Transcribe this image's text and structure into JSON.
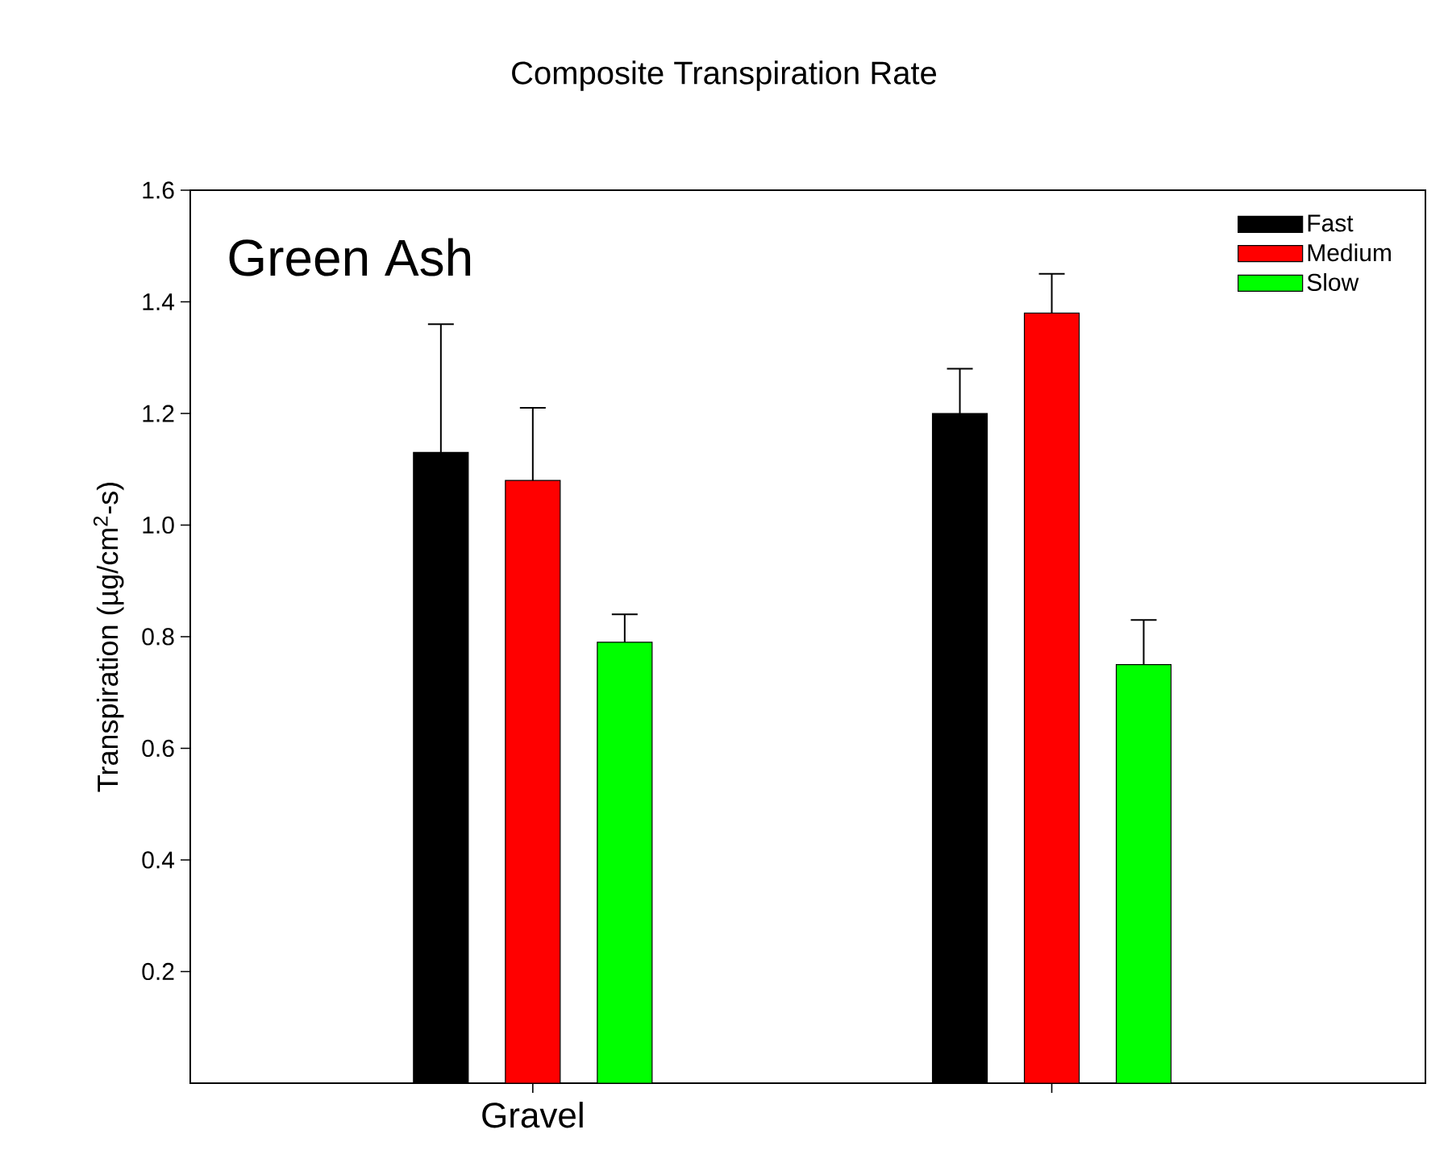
{
  "chart_data": {
    "type": "bar",
    "title": "Composite Transpiration Rate",
    "ylabel": "Transpiration (µg/cm$^{2}$-s)",
    "annotations": [
      "Green Ash"
    ],
    "categories": [
      "Gravel",
      null
    ],
    "series": [
      {
        "name": "Fast",
        "color": "#000000",
        "values": [
          1.13,
          1.2
        ],
        "errors": [
          0.23,
          0.08
        ]
      },
      {
        "name": "Medium",
        "color": "#ff0000",
        "values": [
          1.08,
          1.38
        ],
        "errors": [
          0.13,
          0.07
        ]
      },
      {
        "name": "Slow",
        "color": "#00ff00",
        "values": [
          0.79,
          0.75
        ],
        "errors": [
          0.05,
          0.08
        ]
      }
    ],
    "ylim": [
      0,
      1.6
    ],
    "yticks": [
      0.2,
      0.4,
      0.6,
      0.8,
      {
        "value": 1,
        "label": "1.0"
      },
      1.2,
      1.4,
      1.6
    ],
    "legend": "top right"
  }
}
